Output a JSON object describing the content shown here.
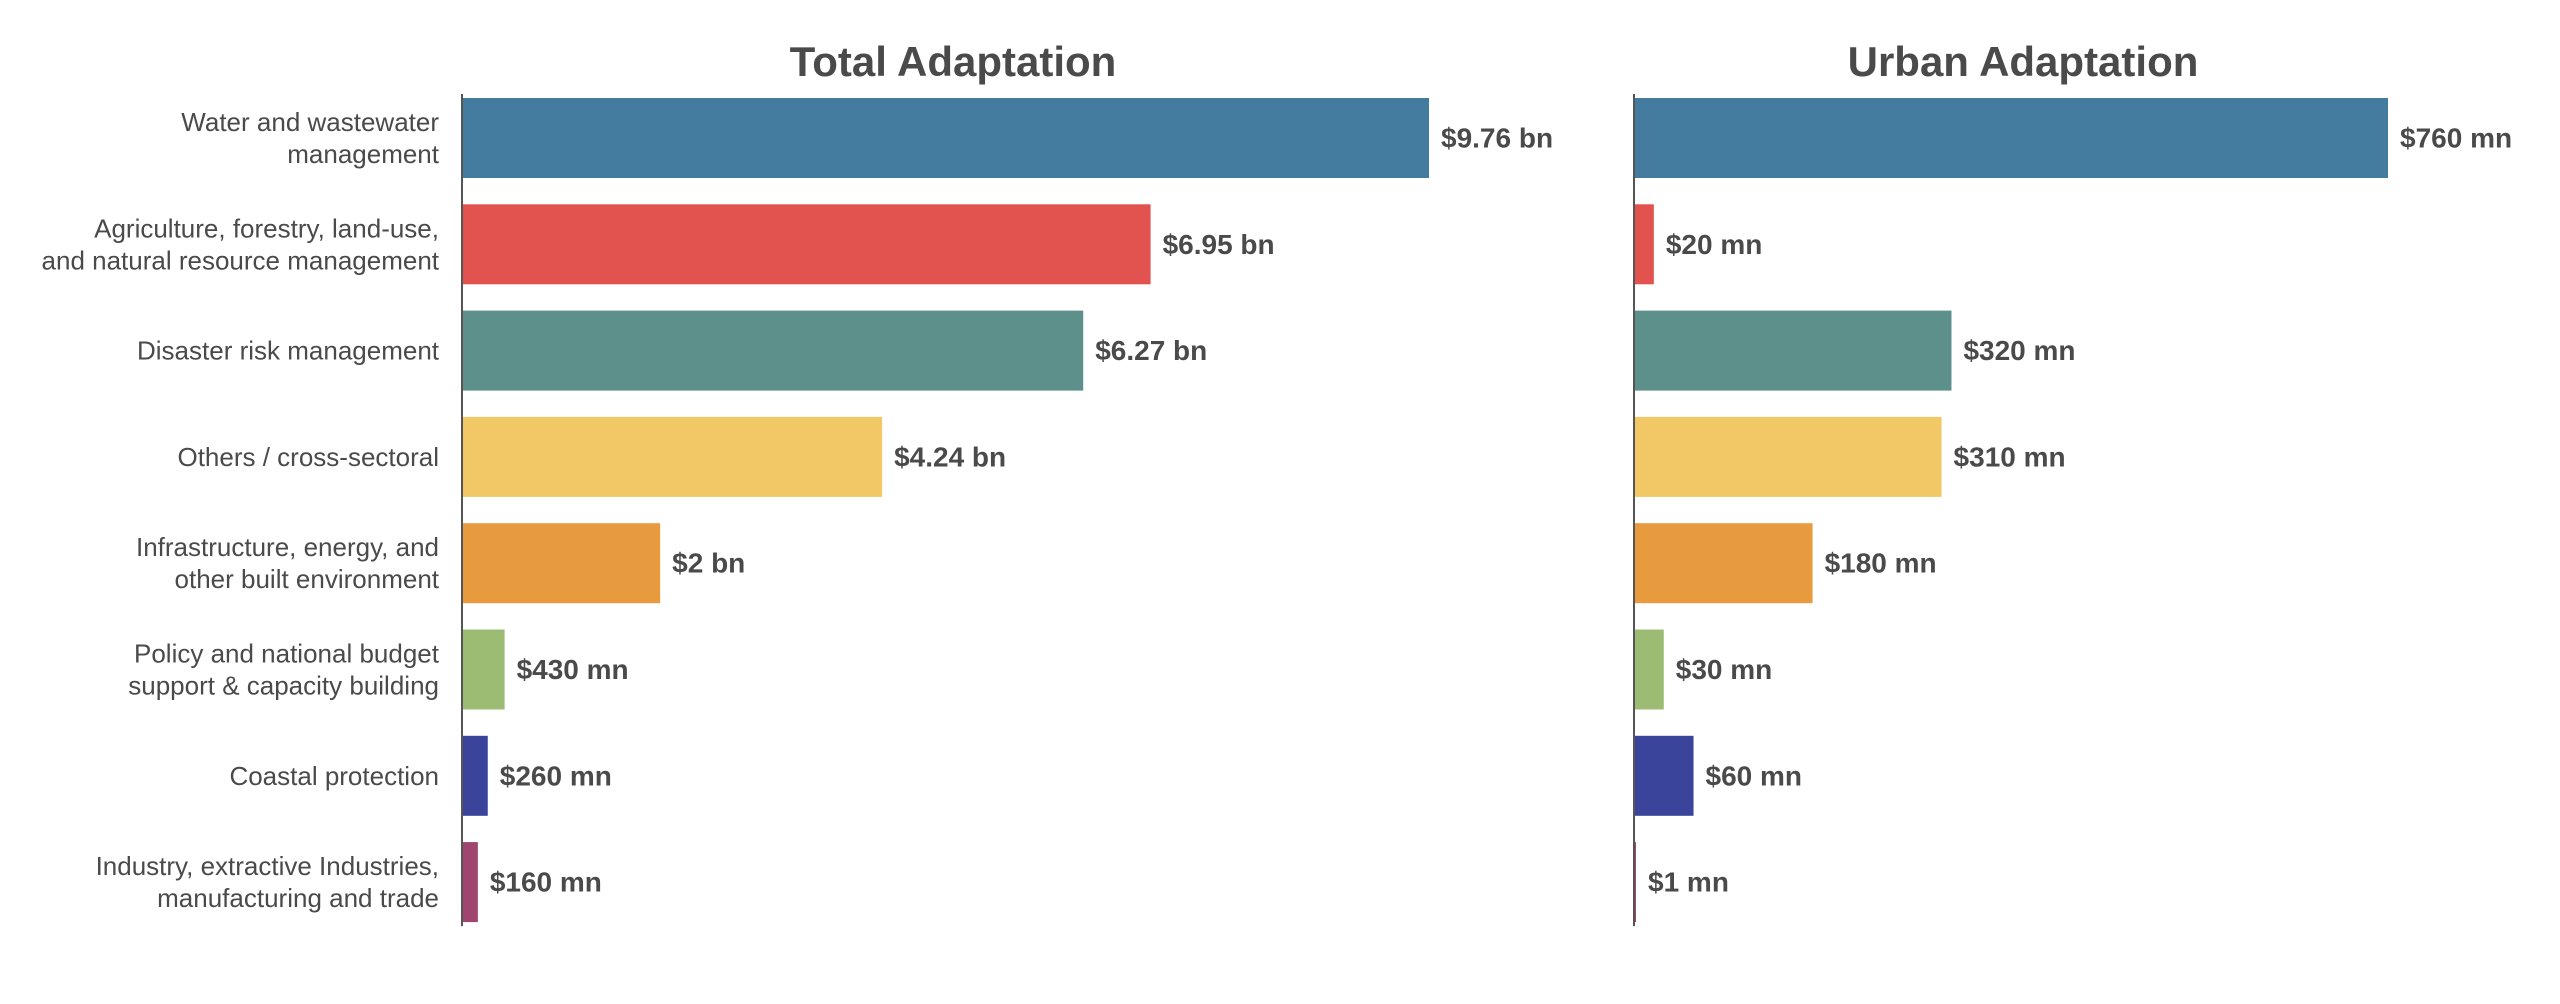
{
  "chart_data": [
    {
      "type": "bar",
      "orientation": "horizontal",
      "title": "Total Adaptation",
      "categories": [
        [
          "Water and wastewater",
          "management"
        ],
        [
          "Agriculture, forestry, land-use,",
          "and natural resource management"
        ],
        [
          "Disaster risk management"
        ],
        [
          "Others / cross-sectoral"
        ],
        [
          "Infrastructure, energy, and",
          "other built environment"
        ],
        [
          "Policy and national budget",
          "support & capacity building"
        ],
        [
          "Coastal protection"
        ],
        [
          "Industry, extractive Industries,",
          "manufacturing and trade"
        ]
      ],
      "values": [
        9760,
        6950,
        6270,
        4240,
        2000,
        430,
        260,
        160
      ],
      "unit": "USD millions",
      "value_labels": [
        "$9.76 bn",
        "$6.95 bn",
        "$6.27 bn",
        "$4.24 bn",
        "$2 bn",
        "$430 mn",
        "$260 mn",
        "$160 mn"
      ],
      "colors": [
        "#447c9f",
        "#e2524e",
        "#5d8f8b",
        "#f1c865",
        "#e89a3e",
        "#9cbc74",
        "#3a449b",
        "#a0456f"
      ]
    },
    {
      "type": "bar",
      "orientation": "horizontal",
      "title": "Urban Adaptation",
      "values": [
        760,
        20,
        320,
        310,
        180,
        30,
        60,
        1
      ],
      "unit": "USD millions",
      "value_labels": [
        "$760 mn",
        "$20 mn",
        "$320 mn",
        "$310 mn",
        "$180 mn",
        "$30 mn",
        "$60 mn",
        "$1 mn"
      ],
      "colors": [
        "#447c9f",
        "#e2524e",
        "#5d8f8b",
        "#f1c865",
        "#e89a3e",
        "#9cbc74",
        "#3a449b",
        "#a0456f"
      ]
    }
  ]
}
